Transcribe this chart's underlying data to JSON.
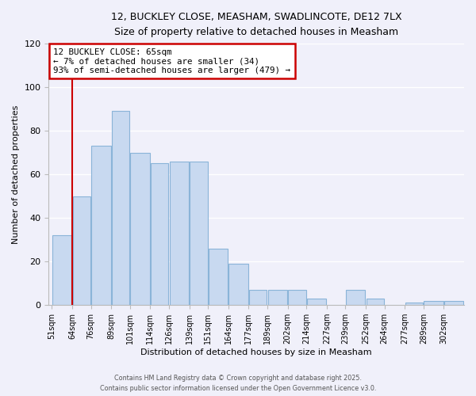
{
  "title_line1": "12, BUCKLEY CLOSE, MEASHAM, SWADLINCOTE, DE12 7LX",
  "title_line2": "Size of property relative to detached houses in Measham",
  "xlabel": "Distribution of detached houses by size in Measham",
  "ylabel": "Number of detached properties",
  "bar_edges": [
    51,
    64,
    76,
    89,
    101,
    114,
    126,
    139,
    151,
    164,
    177,
    189,
    202,
    214,
    227,
    239,
    252,
    264,
    277,
    289,
    302
  ],
  "bar_heights": [
    32,
    50,
    73,
    89,
    70,
    65,
    66,
    66,
    26,
    19,
    7,
    7,
    7,
    3,
    0,
    7,
    3,
    0,
    1,
    2,
    2
  ],
  "bar_color": "#c8d9f0",
  "bar_edgecolor": "#8ab4d8",
  "vline_x": 64,
  "vline_color": "#cc0000",
  "annotation_line1": "12 BUCKLEY CLOSE: 65sqm",
  "annotation_line2": "← 7% of detached houses are smaller (34)",
  "annotation_line3": "93% of semi-detached houses are larger (479) →",
  "annotation_box_color": "#ffffff",
  "annotation_box_edgecolor": "#cc0000",
  "ylim": [
    0,
    120
  ],
  "yticks": [
    0,
    20,
    40,
    60,
    80,
    100,
    120
  ],
  "tick_labels": [
    "51sqm",
    "64sqm",
    "76sqm",
    "89sqm",
    "101sqm",
    "114sqm",
    "126sqm",
    "139sqm",
    "151sqm",
    "164sqm",
    "177sqm",
    "189sqm",
    "202sqm",
    "214sqm",
    "227sqm",
    "239sqm",
    "252sqm",
    "264sqm",
    "277sqm",
    "289sqm",
    "302sqm"
  ],
  "footer_line1": "Contains HM Land Registry data © Crown copyright and database right 2025.",
  "footer_line2": "Contains public sector information licensed under the Open Government Licence v3.0.",
  "bg_color": "#f0f0fa",
  "grid_color": "#ffffff"
}
